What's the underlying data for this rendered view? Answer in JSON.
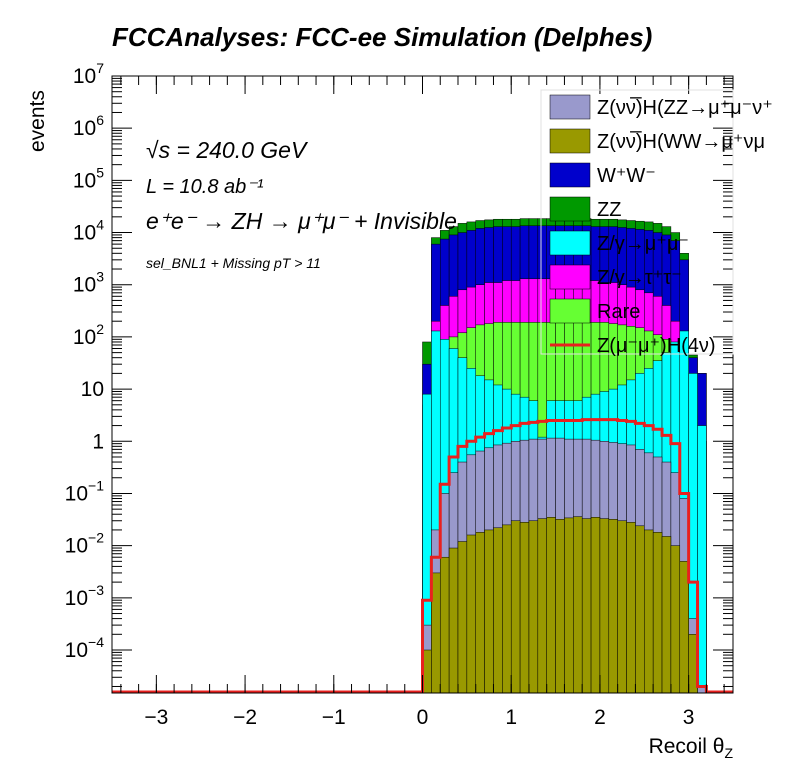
{
  "chart_data": {
    "type": "bar",
    "title": "FCCAnalyses: FCC-ee Simulation (Delphes)",
    "xlabel": "Recoil θ",
    "xlabel_sub": "Z",
    "ylabel": "events",
    "xlim": [
      -3.5,
      3.5
    ],
    "ylim": [
      1.5e-05,
      10000000.0
    ],
    "y_scale": "log",
    "x_ticks": [
      -3,
      -2,
      -1,
      0,
      1,
      2,
      3
    ],
    "x_tick_labels": [
      "−3",
      "−2",
      "−1",
      "0",
      "1",
      "2",
      "3"
    ],
    "y_tick_labels": [
      {
        "base": "10",
        "exp": "−4",
        "value": 0.0001
      },
      {
        "base": "10",
        "exp": "−3",
        "value": 0.001
      },
      {
        "base": "10",
        "exp": "−2",
        "value": 0.01
      },
      {
        "base": "10",
        "exp": "−1",
        "value": 0.1
      },
      {
        "base": "1",
        "exp": "",
        "value": 1
      },
      {
        "base": "10",
        "exp": "",
        "value": 10
      },
      {
        "base": "10",
        "exp": "2",
        "value": 100
      },
      {
        "base": "10",
        "exp": "3",
        "value": 1000
      },
      {
        "base": "10",
        "exp": "4",
        "value": 10000
      },
      {
        "base": "10",
        "exp": "5",
        "value": 100000
      },
      {
        "base": "10",
        "exp": "6",
        "value": 1000000
      },
      {
        "base": "10",
        "exp": "7",
        "value": 10000000
      }
    ],
    "annotations": {
      "sqrt_s": "√s = 240.0 GeV",
      "lumi": "L = 10.8 ab⁻¹",
      "process": "e⁺e⁻ → ZH → μ⁺μ⁻ + Invisible",
      "selection": "sel_BNL1 + Missing pT > 11"
    },
    "legend_position": "top-right",
    "stacked": true,
    "bin_width": 0.1,
    "bin_centers": [
      0.05,
      0.15,
      0.25,
      0.35,
      0.45,
      0.55,
      0.65,
      0.75,
      0.85,
      0.95,
      1.05,
      1.15,
      1.25,
      1.35,
      1.45,
      1.55,
      1.65,
      1.75,
      1.85,
      1.95,
      2.05,
      2.15,
      2.25,
      2.35,
      2.45,
      2.55,
      2.65,
      2.75,
      2.85,
      2.95,
      3.05,
      3.15
    ],
    "stack_totals": {
      "Z(νν̅)H(ZZ→μ⁺μ⁻ν⁺ν)": [
        0.0003,
        0.02,
        0.1,
        0.25,
        0.4,
        0.55,
        0.65,
        0.75,
        0.85,
        0.92,
        1.0,
        1.05,
        1.1,
        1.1,
        1.15,
        1.15,
        1.1,
        1.1,
        1.1,
        1.05,
        1.0,
        0.95,
        0.9,
        0.85,
        0.7,
        0.6,
        0.5,
        0.4,
        0.25,
        0.08,
        0.0004,
        2e-05
      ],
      "Z(νν̅)H(WW→μ⁺νμ⁻ν)": [
        0.0001,
        0.003,
        0.006,
        0.009,
        0.012,
        0.016,
        0.018,
        0.02,
        0.022,
        0.025,
        0.03,
        0.028,
        0.03,
        0.033,
        0.035,
        0.032,
        0.034,
        0.036,
        0.033,
        0.035,
        0.033,
        0.032,
        0.03,
        0.028,
        0.024,
        0.02,
        0.018,
        0.015,
        0.01,
        0.005,
        0.0002,
        1e-05
      ],
      "W⁺W⁻": [
        3.0,
        500,
        1500,
        3000,
        5000,
        7000,
        8000,
        8500,
        9000,
        9500,
        10000,
        10000,
        10500,
        10500,
        10500,
        10500,
        10500,
        10500,
        10000,
        10000,
        9500,
        9500,
        9000,
        8500,
        8000,
        7000,
        5500,
        4000,
        2500,
        1000,
        30,
        5
      ],
      "ZZ": [
        80,
        2000,
        4000,
        6000,
        8000,
        10000,
        11000,
        12000,
        13000,
        14000,
        15000,
        15000,
        15000,
        15000,
        15000,
        15000,
        15000,
        15000,
        15000,
        15000,
        15000,
        14000,
        14000,
        13000,
        12000,
        11000,
        9000,
        7000,
        4000,
        1500,
        40,
        20
      ],
      "Z/γ→μ⁺μ⁻": [
        8.0,
        30,
        25,
        20,
        15,
        12,
        10,
        8,
        6,
        5,
        4,
        3.5,
        3,
        3,
        2.5,
        2.5,
        3,
        3,
        3.5,
        4,
        5,
        6,
        8,
        10,
        12,
        15,
        20,
        25,
        30,
        30,
        20,
        2
      ],
      "Z/γ→τ⁺τ⁻": [
        5.0,
        100,
        300,
        500,
        700,
        800,
        900,
        1000,
        1000,
        1100,
        1100,
        1200,
        1200,
        1200,
        1200,
        1200,
        1200,
        1100,
        1100,
        1100,
        1000,
        1000,
        900,
        800,
        700,
        600,
        500,
        300,
        100,
        20,
        3,
        1
      ],
      "Rare": [
        1.0,
        60,
        100,
        150,
        200,
        250,
        280,
        300,
        300,
        300,
        300,
        300,
        300,
        300,
        300,
        300,
        300,
        300,
        300,
        300,
        300,
        280,
        270,
        250,
        250,
        220,
        200,
        150,
        100,
        50,
        4,
        1
      ],
      "Z(μ⁻μ⁺)H(4ν)": [
        0.0009,
        0.006,
        0.15,
        0.5,
        0.8,
        1.0,
        1.2,
        1.4,
        1.6,
        1.8,
        2.0,
        2.2,
        2.3,
        2.4,
        2.5,
        2.5,
        2.5,
        2.5,
        2.6,
        2.6,
        2.6,
        2.6,
        2.5,
        2.4,
        2.2,
        2.0,
        1.7,
        1.3,
        0.9,
        0.1,
        0.002,
        2e-05
      ]
    },
    "series": [
      {
        "name": "Z(νν̅)H(ZZ→μ⁺μ⁻ν⁺ν",
        "color": "#9999cc",
        "level": [
          0.0003,
          0.02,
          0.1,
          0.25,
          0.4,
          0.55,
          0.65,
          0.75,
          0.85,
          0.92,
          1.0,
          1.05,
          1.1,
          1.1,
          1.15,
          1.15,
          1.1,
          1.1,
          1.1,
          1.05,
          1.0,
          0.95,
          0.9,
          0.85,
          0.7,
          0.6,
          0.5,
          0.4,
          0.25,
          0.08,
          0.0004,
          2e-05
        ]
      },
      {
        "name": "Z(νν̅)H(WW→μ⁺νμ⁻ν",
        "color": "#999900",
        "level": [
          0.0001,
          0.003,
          0.006,
          0.009,
          0.012,
          0.016,
          0.018,
          0.02,
          0.022,
          0.025,
          0.03,
          0.028,
          0.03,
          0.033,
          0.035,
          0.032,
          0.034,
          0.036,
          0.033,
          0.035,
          0.033,
          0.032,
          0.03,
          0.028,
          0.024,
          0.02,
          0.018,
          0.015,
          0.01,
          0.005,
          0.0002,
          1e-05
        ]
      },
      {
        "name": "W⁺W⁻",
        "color": "#0000cc",
        "level": [
          30,
          6000,
          7500,
          9000,
          10000,
          11000,
          12000,
          12500,
          13000,
          13000,
          13000,
          13500,
          13500,
          13500,
          13500,
          13500,
          13500,
          13500,
          13500,
          13000,
          13000,
          13000,
          12500,
          12000,
          11500,
          11000,
          10000,
          9000,
          7000,
          3000,
          40,
          20
        ]
      },
      {
        "name": "ZZ",
        "color": "#009900",
        "level": [
          80,
          8000,
          11000,
          13000,
          15000,
          16000,
          17000,
          17500,
          18000,
          18000,
          18000,
          18500,
          18500,
          18500,
          18500,
          18500,
          18500,
          18500,
          18500,
          18000,
          18000,
          18000,
          17500,
          17000,
          16500,
          16000,
          15000,
          13000,
          10000,
          4000,
          45,
          20
        ]
      },
      {
        "name": "Z/γ→μ⁺μ⁻",
        "color": "#00ffff",
        "level": [
          8,
          130,
          90,
          60,
          40,
          25,
          18,
          15,
          12,
          10,
          8,
          7,
          6,
          1.2,
          6,
          6,
          6,
          6,
          7,
          8,
          9,
          10,
          12,
          15,
          20,
          25,
          35,
          50,
          80,
          130,
          20,
          2
        ]
      },
      {
        "name": "Z/γ→τ⁺τ⁻",
        "color": "#ff00ff",
        "level": [
          5,
          200,
          400,
          600,
          800,
          900,
          1000,
          1100,
          1100,
          1200,
          1200,
          1300,
          1300,
          1300,
          1300,
          1300,
          1300,
          1200,
          1200,
          1200,
          1100,
          1100,
          1000,
          900,
          800,
          700,
          600,
          400,
          200,
          50,
          3,
          1
        ]
      },
      {
        "name": "Rare",
        "color": "#66ff33",
        "level": [
          1,
          60,
          80,
          100,
          120,
          150,
          170,
          180,
          190,
          190,
          190,
          190,
          190,
          190,
          190,
          190,
          190,
          190,
          190,
          190,
          190,
          180,
          170,
          160,
          150,
          130,
          110,
          90,
          60,
          40,
          4,
          1
        ]
      },
      {
        "name": "Z(μ⁻μ⁺)H(4ν)",
        "color": "#e8211f",
        "level": [
          0.0009,
          0.006,
          0.15,
          0.5,
          0.8,
          1.0,
          1.2,
          1.4,
          1.6,
          1.8,
          2.0,
          2.2,
          2.3,
          2.4,
          2.5,
          2.5,
          2.5,
          2.5,
          2.6,
          2.6,
          2.6,
          2.6,
          2.5,
          2.4,
          2.2,
          2.0,
          1.7,
          1.3,
          0.9,
          0.1,
          0.002,
          2e-05
        ]
      }
    ],
    "legend_labels": [
      "Z(νν̅)H(ZZ→μ⁺μ⁻ν⁺",
      "Z(νν̅)H(WW→μ⁺νμ",
      "W⁺W⁻",
      "ZZ",
      "Z/γ→μ⁺μ⁻",
      "Z/γ→τ⁺τ⁻",
      "Rare",
      "Z(μ⁻μ⁺)H(4ν)"
    ]
  }
}
